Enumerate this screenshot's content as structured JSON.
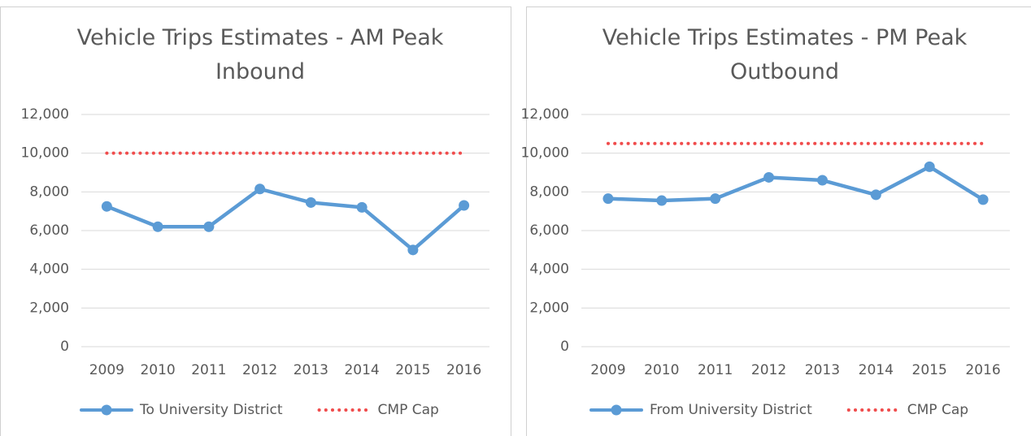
{
  "chart_data": [
    {
      "type": "line",
      "title": "Vehicle Trips Estimates - AM Peak Inbound",
      "categories": [
        "2009",
        "2010",
        "2011",
        "2012",
        "2013",
        "2014",
        "2015",
        "2016"
      ],
      "series": [
        {
          "name": "To University District",
          "color": "#5b9bd5",
          "style": "solid",
          "markers": true,
          "values": [
            7250,
            6200,
            6200,
            8150,
            7450,
            7200,
            5000,
            7300
          ]
        },
        {
          "name": "CMP Cap",
          "color": "#f04c4c",
          "style": "dotted",
          "markers": false,
          "values": [
            10000,
            10000,
            10000,
            10000,
            10000,
            10000,
            10000,
            10000
          ]
        }
      ],
      "ylim": [
        0,
        12000
      ],
      "yticks": [
        0,
        {
          "value": 2000,
          "label": "2,000"
        },
        {
          "value": 4000,
          "label": "4,000"
        },
        {
          "value": 6000,
          "label": "6,000"
        },
        {
          "value": 8000,
          "label": "8,000"
        },
        {
          "value": 10000,
          "label": "10,000"
        },
        {
          "value": 12000,
          "label": "12,000"
        }
      ],
      "grid": true,
      "legend": "bottom"
    },
    {
      "type": "line",
      "title": "Vehicle Trips Estimates - PM Peak Outbound",
      "categories": [
        "2009",
        "2010",
        "2011",
        "2012",
        "2013",
        "2014",
        "2015",
        "2016"
      ],
      "series": [
        {
          "name": "From University District",
          "color": "#5b9bd5",
          "style": "solid",
          "markers": true,
          "values": [
            7650,
            7550,
            7650,
            8750,
            8600,
            7850,
            9300,
            7600
          ]
        },
        {
          "name": "CMP Cap",
          "color": "#f04c4c",
          "style": "dotted",
          "markers": false,
          "values": [
            10500,
            10500,
            10500,
            10500,
            10500,
            10500,
            10500,
            10500
          ]
        }
      ],
      "ylim": [
        0,
        12000
      ],
      "yticks": [
        0,
        {
          "value": 2000,
          "label": "2,000"
        },
        {
          "value": 4000,
          "label": "4,000"
        },
        {
          "value": 6000,
          "label": "6,000"
        },
        {
          "value": 8000,
          "label": "8,000"
        },
        {
          "value": 10000,
          "label": "10,000"
        },
        {
          "value": 12000,
          "label": "12,000"
        }
      ],
      "grid": true,
      "legend": "bottom"
    }
  ]
}
